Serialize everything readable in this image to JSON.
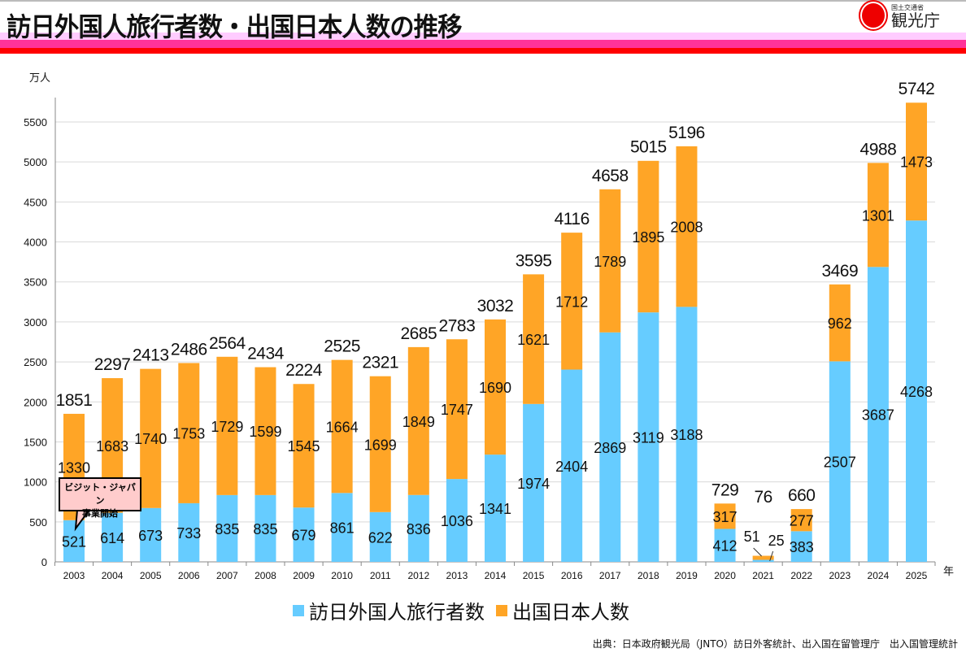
{
  "header": {
    "title": "訪日外国人旅行者数・出国日本人数の推移",
    "logo_small": "国土交通省",
    "logo_big": "観光庁"
  },
  "callout": {
    "line1": "ビジット・ジャパン",
    "line2": "事業開始"
  },
  "legend": [
    "訪日外国人旅行者数",
    "出国日本人数"
  ],
  "source": "出典：日本政府観光局（JNTO）訪日外客統計、出入国在留管理庁　出入国管理統計",
  "colors": {
    "inbound": "#66ccff",
    "outbound": "#ffa526",
    "grid": "#d9d9d9"
  },
  "chart_data": {
    "type": "bar",
    "stacked": true,
    "ylabel": "万人",
    "xlabel": "年",
    "ylim": [
      0,
      5500
    ],
    "yticks": [
      0,
      500,
      1000,
      1500,
      2000,
      2500,
      3000,
      3500,
      4000,
      4500,
      5000,
      5500
    ],
    "grid": true,
    "legend_position": "bottom",
    "categories": [
      "2003",
      "2004",
      "2005",
      "2006",
      "2007",
      "2008",
      "2009",
      "2010",
      "2011",
      "2012",
      "2013",
      "2014",
      "2015",
      "2016",
      "2017",
      "2018",
      "2019",
      "2020",
      "2021",
      "2022",
      "2023",
      "2024",
      "2025"
    ],
    "series": [
      {
        "name": "訪日外国人旅行者数",
        "values": [
          521,
          614,
          673,
          733,
          835,
          835,
          679,
          861,
          622,
          836,
          1036,
          1341,
          1974,
          2404,
          2869,
          3119,
          3188,
          412,
          25,
          383,
          2507,
          3687,
          4268
        ]
      },
      {
        "name": "出国日本人数",
        "values": [
          1330,
          1683,
          1740,
          1753,
          1729,
          1599,
          1545,
          1664,
          1699,
          1849,
          1747,
          1690,
          1621,
          1712,
          1789,
          1895,
          2008,
          317,
          51,
          277,
          962,
          1301,
          1473
        ]
      }
    ],
    "totals": [
      1851,
      2297,
      2413,
      2486,
      2564,
      2434,
      2224,
      2525,
      2321,
      2685,
      2783,
      3032,
      3595,
      4116,
      4658,
      5015,
      5196,
      729,
      76,
      660,
      3469,
      4988,
      5742
    ]
  }
}
